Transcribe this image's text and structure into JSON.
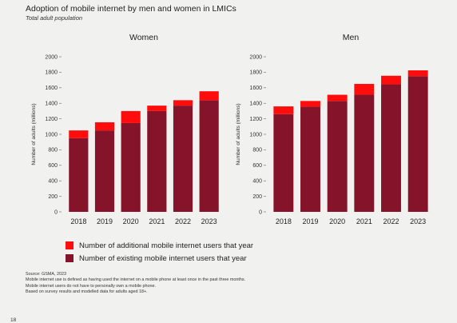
{
  "title": "Adoption of mobile internet by men and women in LMICs",
  "subtitle": "Total adult population",
  "colors": {
    "additional": "#ff0d0d",
    "existing": "#85132a"
  },
  "legend": [
    {
      "label": "Number of additional mobile internet users that year",
      "color": "#ff0d0d"
    },
    {
      "label": "Number of existing mobile internet users that year",
      "color": "#85132a"
    }
  ],
  "notes": [
    "Source: GSMA, 2023",
    "Mobile internet use is defined as having used the internet on a mobile phone at least once in the past three months.",
    "Mobile internet users do not have to personally own a mobile phone.",
    "Based on survey results and modelled data for adults aged 18+."
  ],
  "page_number": "18",
  "chart_data": [
    {
      "type": "bar",
      "stacked": true,
      "title": "Women",
      "ylabel": "Number of adults (millions)",
      "ylim": [
        0,
        2000
      ],
      "yticks": [
        0,
        200,
        400,
        600,
        800,
        1000,
        1200,
        1400,
        1600,
        1800,
        2000
      ],
      "categories": [
        "2018",
        "2019",
        "2020",
        "2021",
        "2022",
        "2023"
      ],
      "series": [
        {
          "name": "Number of existing mobile internet users that year",
          "values": [
            950,
            1050,
            1145,
            1300,
            1370,
            1440
          ]
        },
        {
          "name": "Number of additional mobile internet users that year",
          "values": [
            100,
            105,
            155,
            70,
            70,
            115
          ]
        }
      ]
    },
    {
      "type": "bar",
      "stacked": true,
      "title": "Men",
      "ylabel": "Number of adults (millions)",
      "ylim": [
        0,
        2000
      ],
      "yticks": [
        0,
        200,
        400,
        600,
        800,
        1000,
        1200,
        1400,
        1600,
        1800,
        2000
      ],
      "categories": [
        "2018",
        "2019",
        "2020",
        "2021",
        "2022",
        "2023"
      ],
      "series": [
        {
          "name": "Number of existing mobile internet users that year",
          "values": [
            1260,
            1355,
            1430,
            1510,
            1645,
            1750
          ]
        },
        {
          "name": "Number of additional mobile internet users that year",
          "values": [
            100,
            75,
            80,
            140,
            110,
            75
          ]
        }
      ]
    }
  ]
}
